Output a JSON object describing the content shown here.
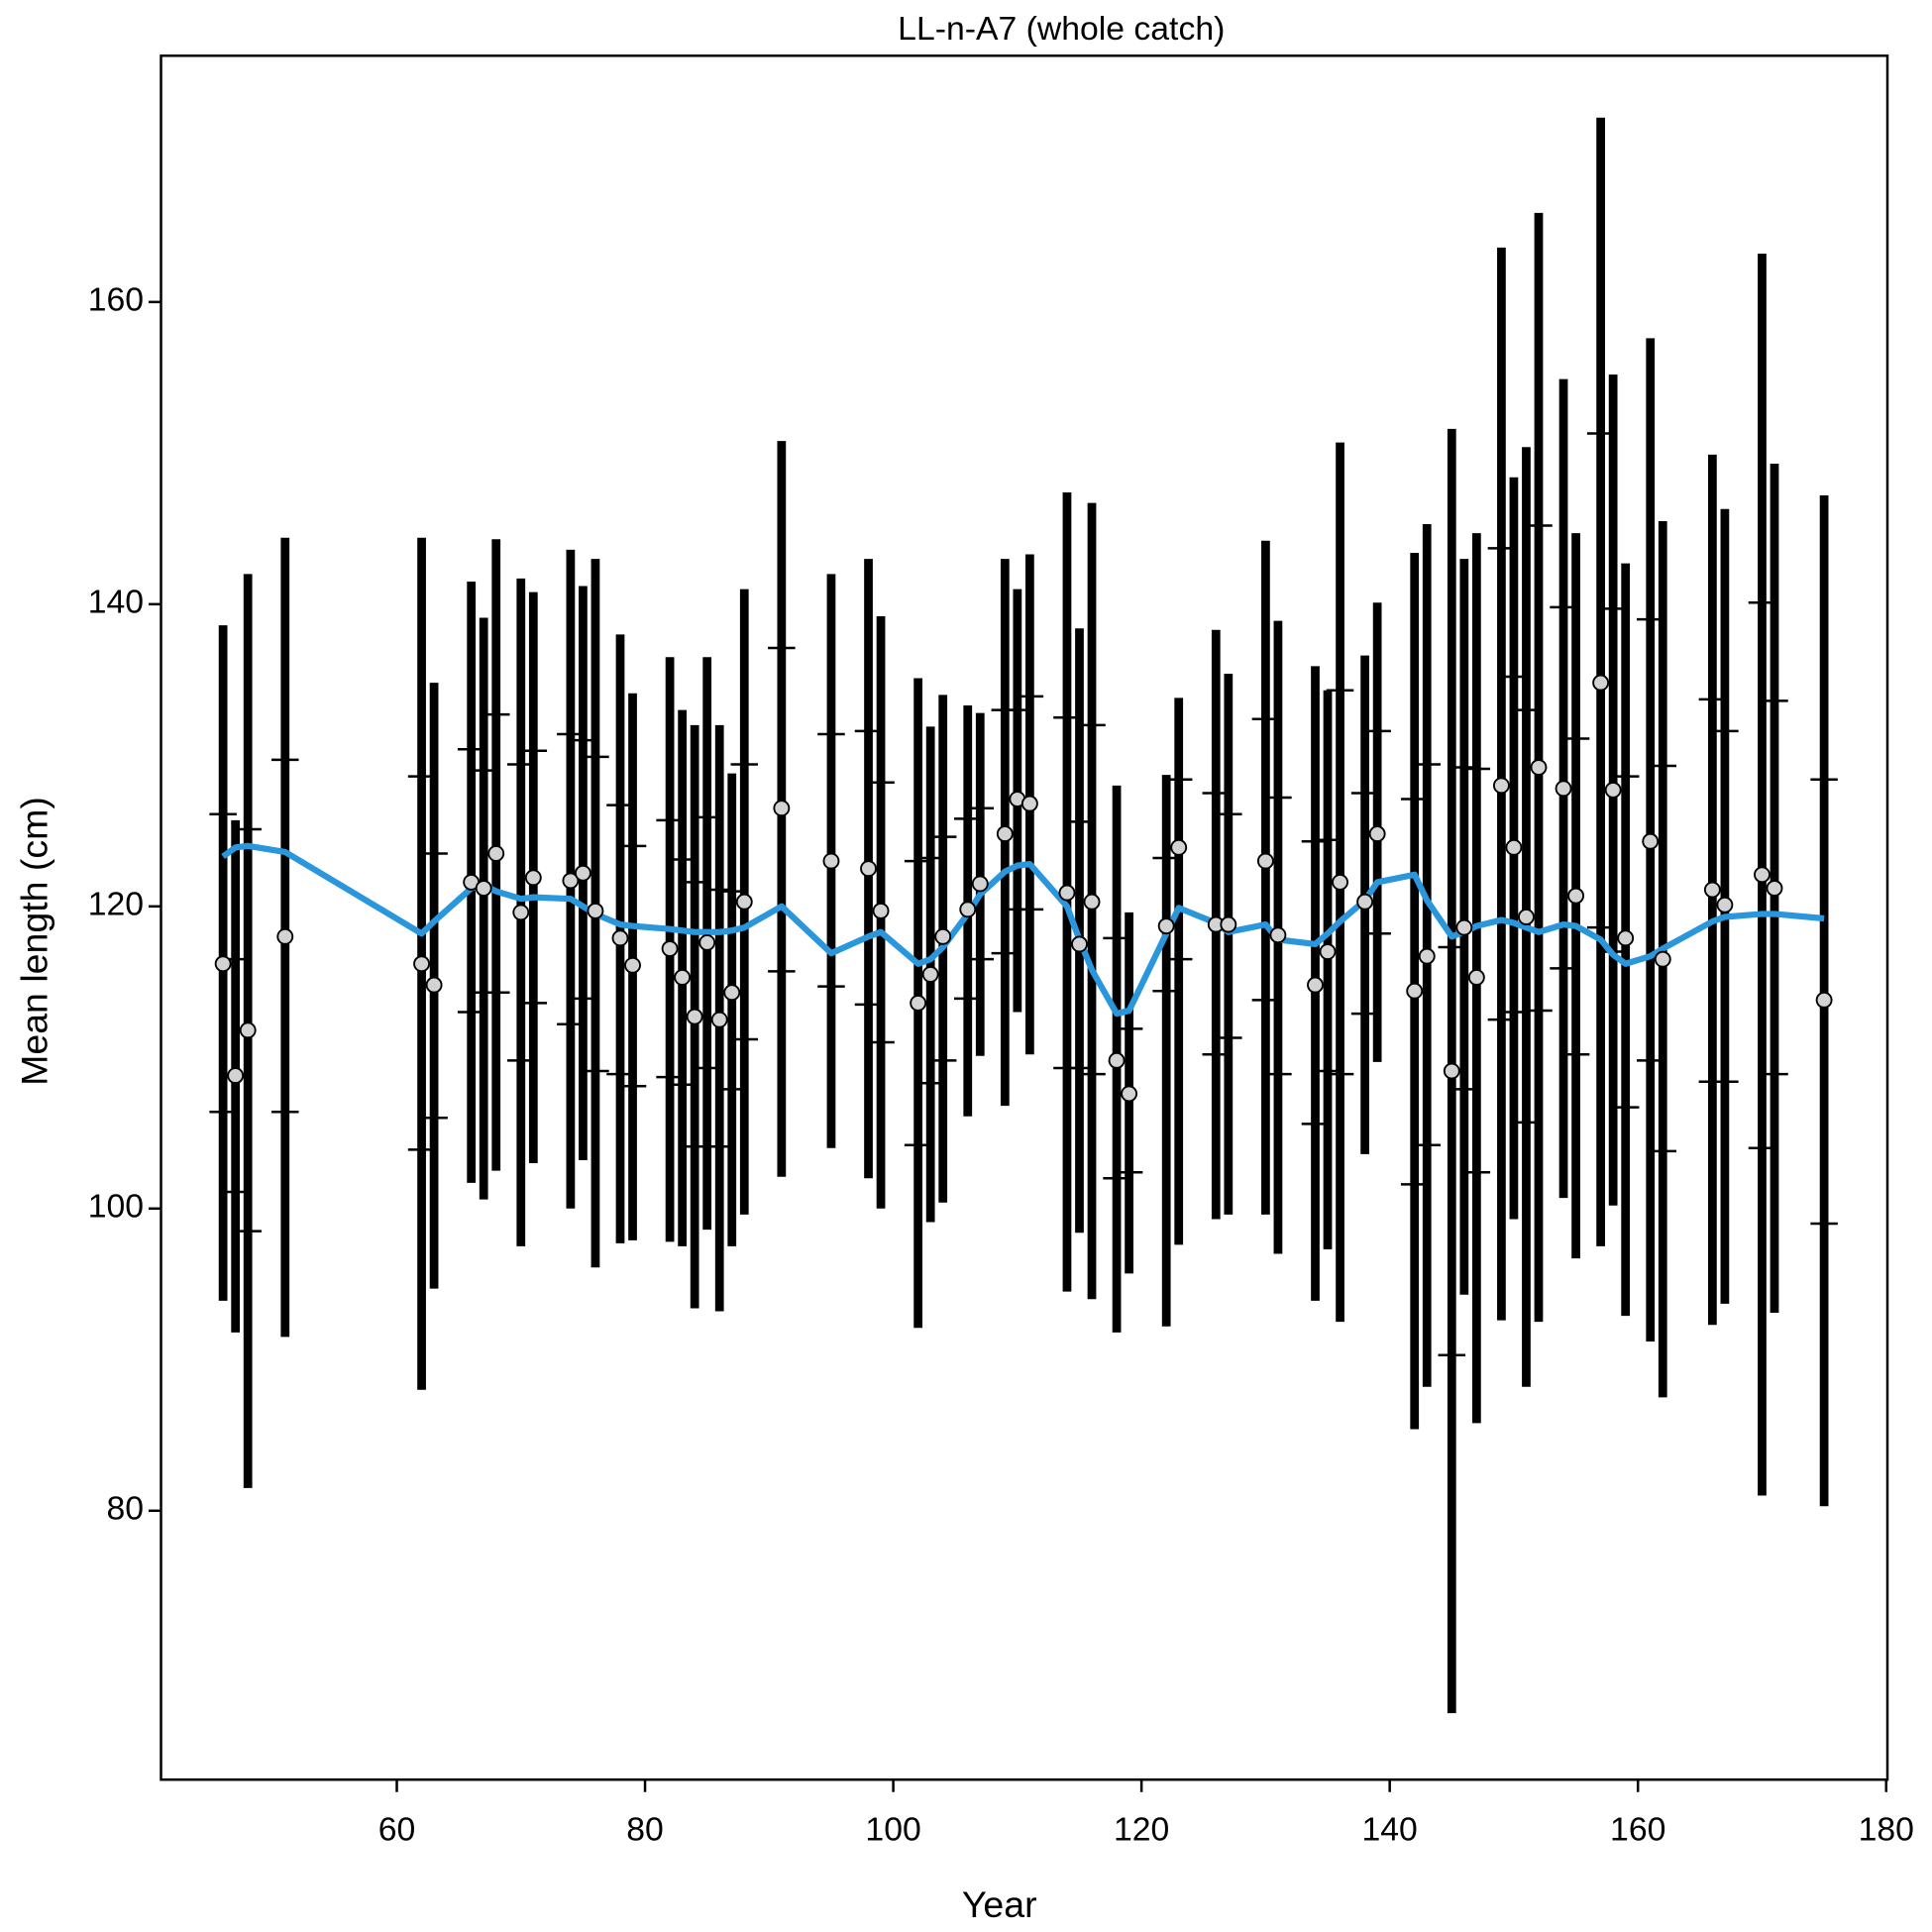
{
  "chart_data": {
    "type": "errorbar",
    "title": "LL-n-A7 (whole catch)",
    "x_label": "Year",
    "y_label": "Mean length (cm)",
    "xlim": [
      41,
      180.1
    ],
    "ylim": [
      62.2,
      176.3
    ],
    "xticks": [
      60,
      80,
      100,
      120,
      140,
      160,
      180
    ],
    "yticks": [
      80,
      100,
      120,
      140,
      160
    ],
    "point_color": "#d3d3d3",
    "bar_color": "#000000",
    "fit_color": "#2a96dc",
    "x": [
      46,
      47,
      48,
      51,
      62,
      63,
      66,
      67,
      68,
      70,
      71,
      74,
      75,
      76,
      78,
      79,
      82,
      83,
      84,
      85,
      86,
      87,
      88,
      91,
      95,
      98,
      99,
      102,
      103,
      104,
      106,
      107,
      109,
      110,
      111,
      114,
      115,
      116,
      118,
      119,
      122,
      123,
      126,
      127,
      130,
      131,
      134,
      135,
      136,
      138,
      139,
      142,
      143,
      145,
      146,
      147,
      149,
      150,
      151,
      152,
      154,
      155,
      157,
      158,
      159,
      161,
      162,
      166,
      167,
      170,
      171,
      175
    ],
    "values": [
      116.2,
      108.8,
      111.8,
      118.0,
      116.2,
      114.8,
      121.6,
      121.2,
      123.5,
      119.6,
      121.9,
      121.7,
      122.2,
      119.7,
      117.9,
      116.1,
      117.2,
      115.3,
      112.7,
      117.6,
      112.5,
      114.3,
      120.3,
      126.5,
      123.0,
      122.5,
      119.7,
      113.6,
      115.5,
      118.0,
      119.8,
      121.5,
      124.8,
      127.1,
      126.8,
      120.9,
      117.5,
      120.3,
      109.8,
      107.6,
      118.7,
      123.9,
      118.8,
      118.8,
      123.0,
      118.1,
      114.8,
      117.0,
      121.6,
      120.3,
      124.8,
      114.4,
      116.7,
      109.1,
      118.6,
      115.3,
      128.0,
      123.9,
      119.3,
      129.2,
      127.8,
      120.7,
      134.8,
      127.7,
      117.9,
      124.3,
      116.5,
      121.1,
      120.1,
      122.1,
      121.2,
      113.8
    ],
    "lower": [
      93.9,
      91.8,
      81.5,
      91.5,
      88.0,
      94.7,
      101.7,
      100.6,
      102.5,
      97.5,
      103.0,
      100.0,
      103.2,
      96.1,
      97.7,
      97.9,
      97.8,
      97.5,
      93.4,
      98.6,
      93.2,
      97.5,
      99.6,
      102.1,
      104.0,
      102.0,
      100.0,
      92.1,
      99.1,
      100.4,
      106.1,
      110.1,
      106.8,
      113.0,
      110.2,
      94.5,
      98.4,
      94.0,
      91.8,
      95.7,
      92.2,
      97.6,
      99.3,
      99.6,
      99.6,
      97.0,
      93.9,
      97.3,
      92.5,
      103.6,
      109.7,
      85.4,
      88.2,
      66.6,
      94.3,
      85.8,
      92.6,
      99.3,
      88.2,
      92.5,
      100.7,
      96.7,
      97.5,
      100.2,
      92.9,
      91.2,
      87.5,
      92.3,
      93.7,
      81.0,
      93.1,
      80.3
    ],
    "upper": [
      138.6,
      125.7,
      142.0,
      144.4,
      144.4,
      134.8,
      141.5,
      139.1,
      144.3,
      141.7,
      140.8,
      143.6,
      141.2,
      143.0,
      138.0,
      134.1,
      136.5,
      133.0,
      132.0,
      136.5,
      132.0,
      128.8,
      141.0,
      150.8,
      142.0,
      143.0,
      139.2,
      135.1,
      131.9,
      134.0,
      133.3,
      132.8,
      143.0,
      141.0,
      143.3,
      147.4,
      138.4,
      146.7,
      128.0,
      119.6,
      128.7,
      133.8,
      138.3,
      135.4,
      144.2,
      138.9,
      135.9,
      134.3,
      150.7,
      136.6,
      140.1,
      143.4,
      145.3,
      151.6,
      143.0,
      144.7,
      163.6,
      148.4,
      150.4,
      165.9,
      154.9,
      144.7,
      172.2,
      155.2,
      142.7,
      157.6,
      145.5,
      149.9,
      146.3,
      163.2,
      149.3,
      147.2
    ],
    "inner_lower": [
      106.4,
      101.1,
      98.5,
      106.4,
      103.9,
      106.0,
      113.0,
      114.3,
      114.3,
      109.8,
      113.6,
      112.2,
      113.9,
      109.1,
      108.9,
      108.1,
      108.7,
      108.2,
      104.1,
      109.3,
      104.1,
      107.9,
      111.2,
      115.7,
      114.7,
      113.5,
      111.0,
      104.2,
      108.3,
      109.8,
      113.9,
      116.5,
      116.9,
      119.8,
      119.8,
      109.3,
      109.3,
      108.9,
      102.0,
      102.4,
      114.4,
      116.5,
      110.2,
      111.3,
      113.8,
      108.9,
      105.6,
      109.1,
      108.9,
      112.9,
      118.2,
      101.6,
      104.2,
      90.3,
      107.9,
      102.4,
      112.5,
      113.0,
      105.7,
      113.1,
      115.9,
      110.2,
      118.6,
      117.0,
      106.7,
      109.8,
      103.8,
      108.4,
      108.4,
      104.0,
      108.9,
      99.0
    ],
    "inner_upper": [
      126.1,
      116.5,
      125.1,
      129.7,
      128.6,
      123.5,
      130.4,
      129.0,
      132.7,
      129.4,
      130.3,
      131.4,
      131.0,
      129.9,
      126.7,
      124.0,
      125.7,
      123.1,
      121.6,
      125.9,
      121.1,
      121.0,
      129.4,
      137.1,
      131.4,
      131.6,
      128.2,
      123.0,
      123.2,
      124.6,
      125.8,
      126.5,
      133.0,
      133.0,
      133.9,
      132.5,
      125.6,
      132.0,
      117.9,
      111.9,
      123.2,
      128.4,
      127.5,
      126.1,
      132.4,
      127.2,
      124.3,
      124.4,
      134.3,
      127.5,
      131.6,
      127.1,
      129.4,
      117.3,
      129.2,
      129.1,
      143.7,
      135.2,
      133.0,
      145.2,
      139.8,
      131.1,
      151.3,
      139.7,
      128.6,
      139.0,
      129.3,
      133.7,
      131.6,
      140.1,
      133.6,
      128.4
    ],
    "fit": [
      123.3,
      123.9,
      124.0,
      123.6,
      118.2,
      119.0,
      121.2,
      121.4,
      121.0,
      120.5,
      120.6,
      120.5,
      120.0,
      119.5,
      118.8,
      118.7,
      118.5,
      118.4,
      118.3,
      118.3,
      118.3,
      118.4,
      118.6,
      120.0,
      116.9,
      118.0,
      118.3,
      116.2,
      116.5,
      117.3,
      119.5,
      120.8,
      122.3,
      122.7,
      122.8,
      120.0,
      117.8,
      115.8,
      112.9,
      113.1,
      118.2,
      119.9,
      118.9,
      118.3,
      118.8,
      117.8,
      117.5,
      118.2,
      119.0,
      120.4,
      121.6,
      122.1,
      120.4,
      118.0,
      118.3,
      118.7,
      119.1,
      118.9,
      118.6,
      118.3,
      118.8,
      118.7,
      117.8,
      116.8,
      116.2,
      116.7,
      117.2,
      119.0,
      119.3,
      119.5,
      119.5,
      119.2
    ]
  }
}
